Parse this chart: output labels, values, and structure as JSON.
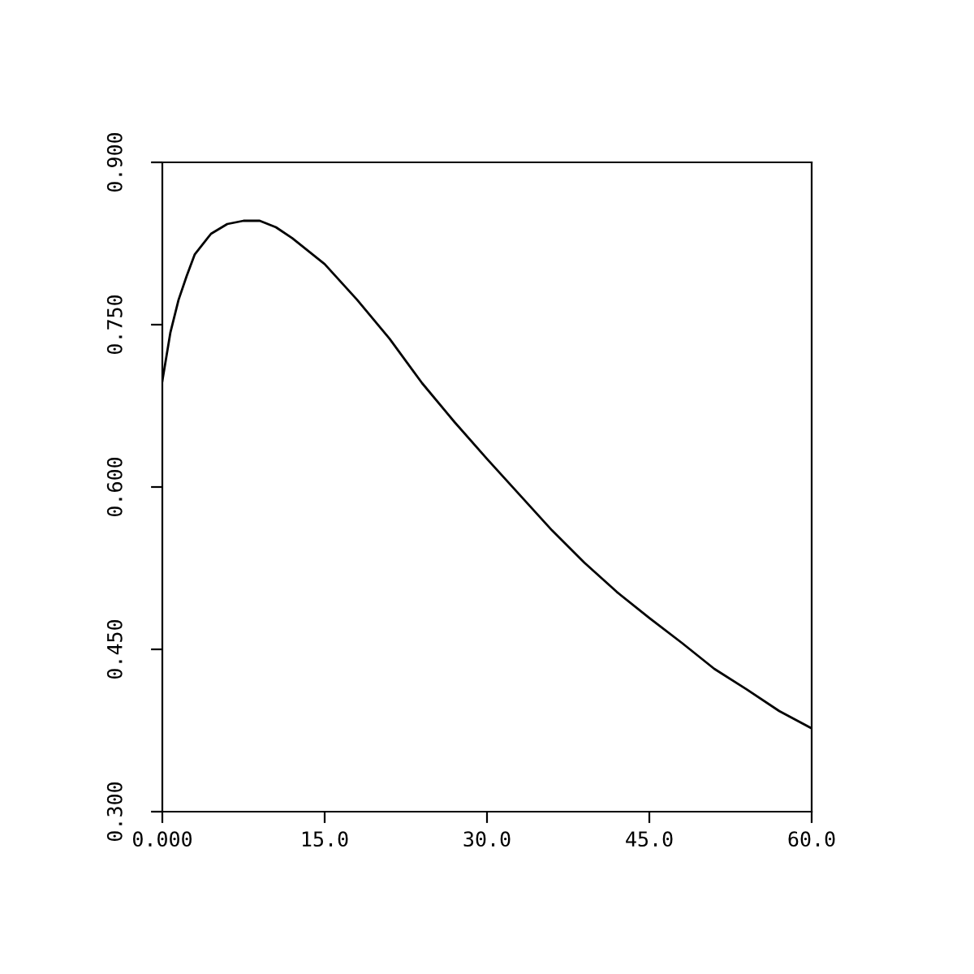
{
  "chart_data": {
    "type": "line",
    "color": "#000000",
    "x": [
      0,
      0.75,
      1.5,
      2.25,
      3,
      4.5,
      6,
      7.5,
      9,
      10.5,
      12,
      15,
      18,
      21,
      24,
      27,
      30,
      33,
      36,
      39,
      42,
      45,
      48,
      51,
      54,
      57,
      60
    ],
    "values": [
      0.698,
      0.743,
      0.773,
      0.795,
      0.815,
      0.834,
      0.843,
      0.846,
      0.846,
      0.84,
      0.83,
      0.806,
      0.773,
      0.737,
      0.696,
      0.66,
      0.626,
      0.593,
      0.56,
      0.53,
      0.503,
      0.479,
      0.456,
      0.432,
      0.413,
      0.393,
      0.377
    ],
    "xlim": [
      0,
      60
    ],
    "ylim": [
      0.3,
      0.9
    ],
    "xticks": [
      {
        "value": 0,
        "label": "0.000"
      },
      {
        "value": 15,
        "label": "15.0"
      },
      {
        "value": 30,
        "label": "30.0"
      },
      {
        "value": 45,
        "label": "45.0"
      },
      {
        "value": 60,
        "label": "60.0"
      }
    ],
    "yticks": [
      {
        "value": 0.3,
        "label": "0.300"
      },
      {
        "value": 0.45,
        "label": "0.450"
      },
      {
        "value": 0.6,
        "label": "0.600"
      },
      {
        "value": 0.75,
        "label": "0.750"
      },
      {
        "value": 0.9,
        "label": "0.900"
      }
    ],
    "grid": false
  }
}
